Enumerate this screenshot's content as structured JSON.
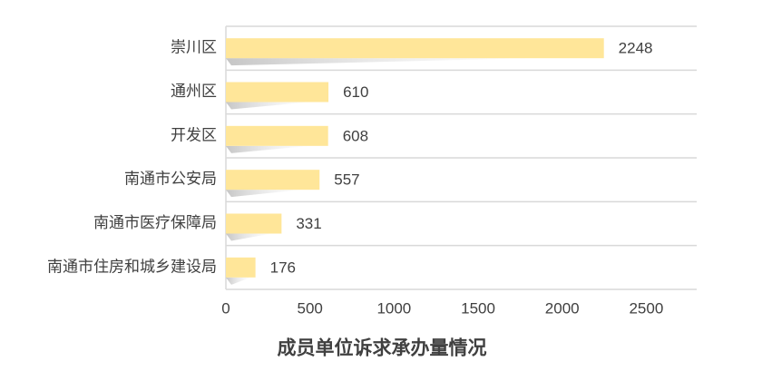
{
  "chart_data": {
    "type": "bar",
    "orientation": "horizontal",
    "title": "成员单位诉求承办量情况",
    "categories": [
      "崇川区",
      "通州区",
      "开发区",
      "南通市公安局",
      "南通市医疗保障局",
      "南通市住房和城乡建设局"
    ],
    "values": [
      2248,
      610,
      608,
      557,
      331,
      176
    ],
    "color": "#ffe699",
    "xlim": [
      0,
      2800
    ],
    "xticks": [
      0,
      500,
      1000,
      1500,
      2000,
      2500
    ],
    "grid": true
  }
}
